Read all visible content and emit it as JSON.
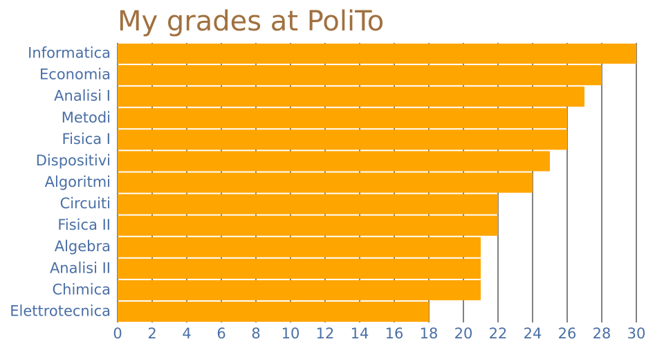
{
  "chart_data": {
    "type": "barh",
    "title": "My grades at PoliTo",
    "categories": [
      "Informatica",
      "Economia",
      "Analisi I",
      "Metodi",
      "Fisica I",
      "Dispositivi",
      "Algoritmi",
      "Circuiti",
      "Fisica II",
      "Algebra",
      "Analisi II",
      "Chimica",
      "Elettrotecnica"
    ],
    "values": [
      30,
      28,
      27,
      26,
      26,
      25,
      24,
      22,
      22,
      21,
      21,
      21,
      18
    ],
    "color": "#ffa500",
    "xlim": [
      0,
      30
    ],
    "xticks": [
      0,
      2,
      4,
      6,
      8,
      10,
      12,
      14,
      16,
      18,
      20,
      22,
      24,
      26,
      28,
      30
    ],
    "grid": true
  }
}
